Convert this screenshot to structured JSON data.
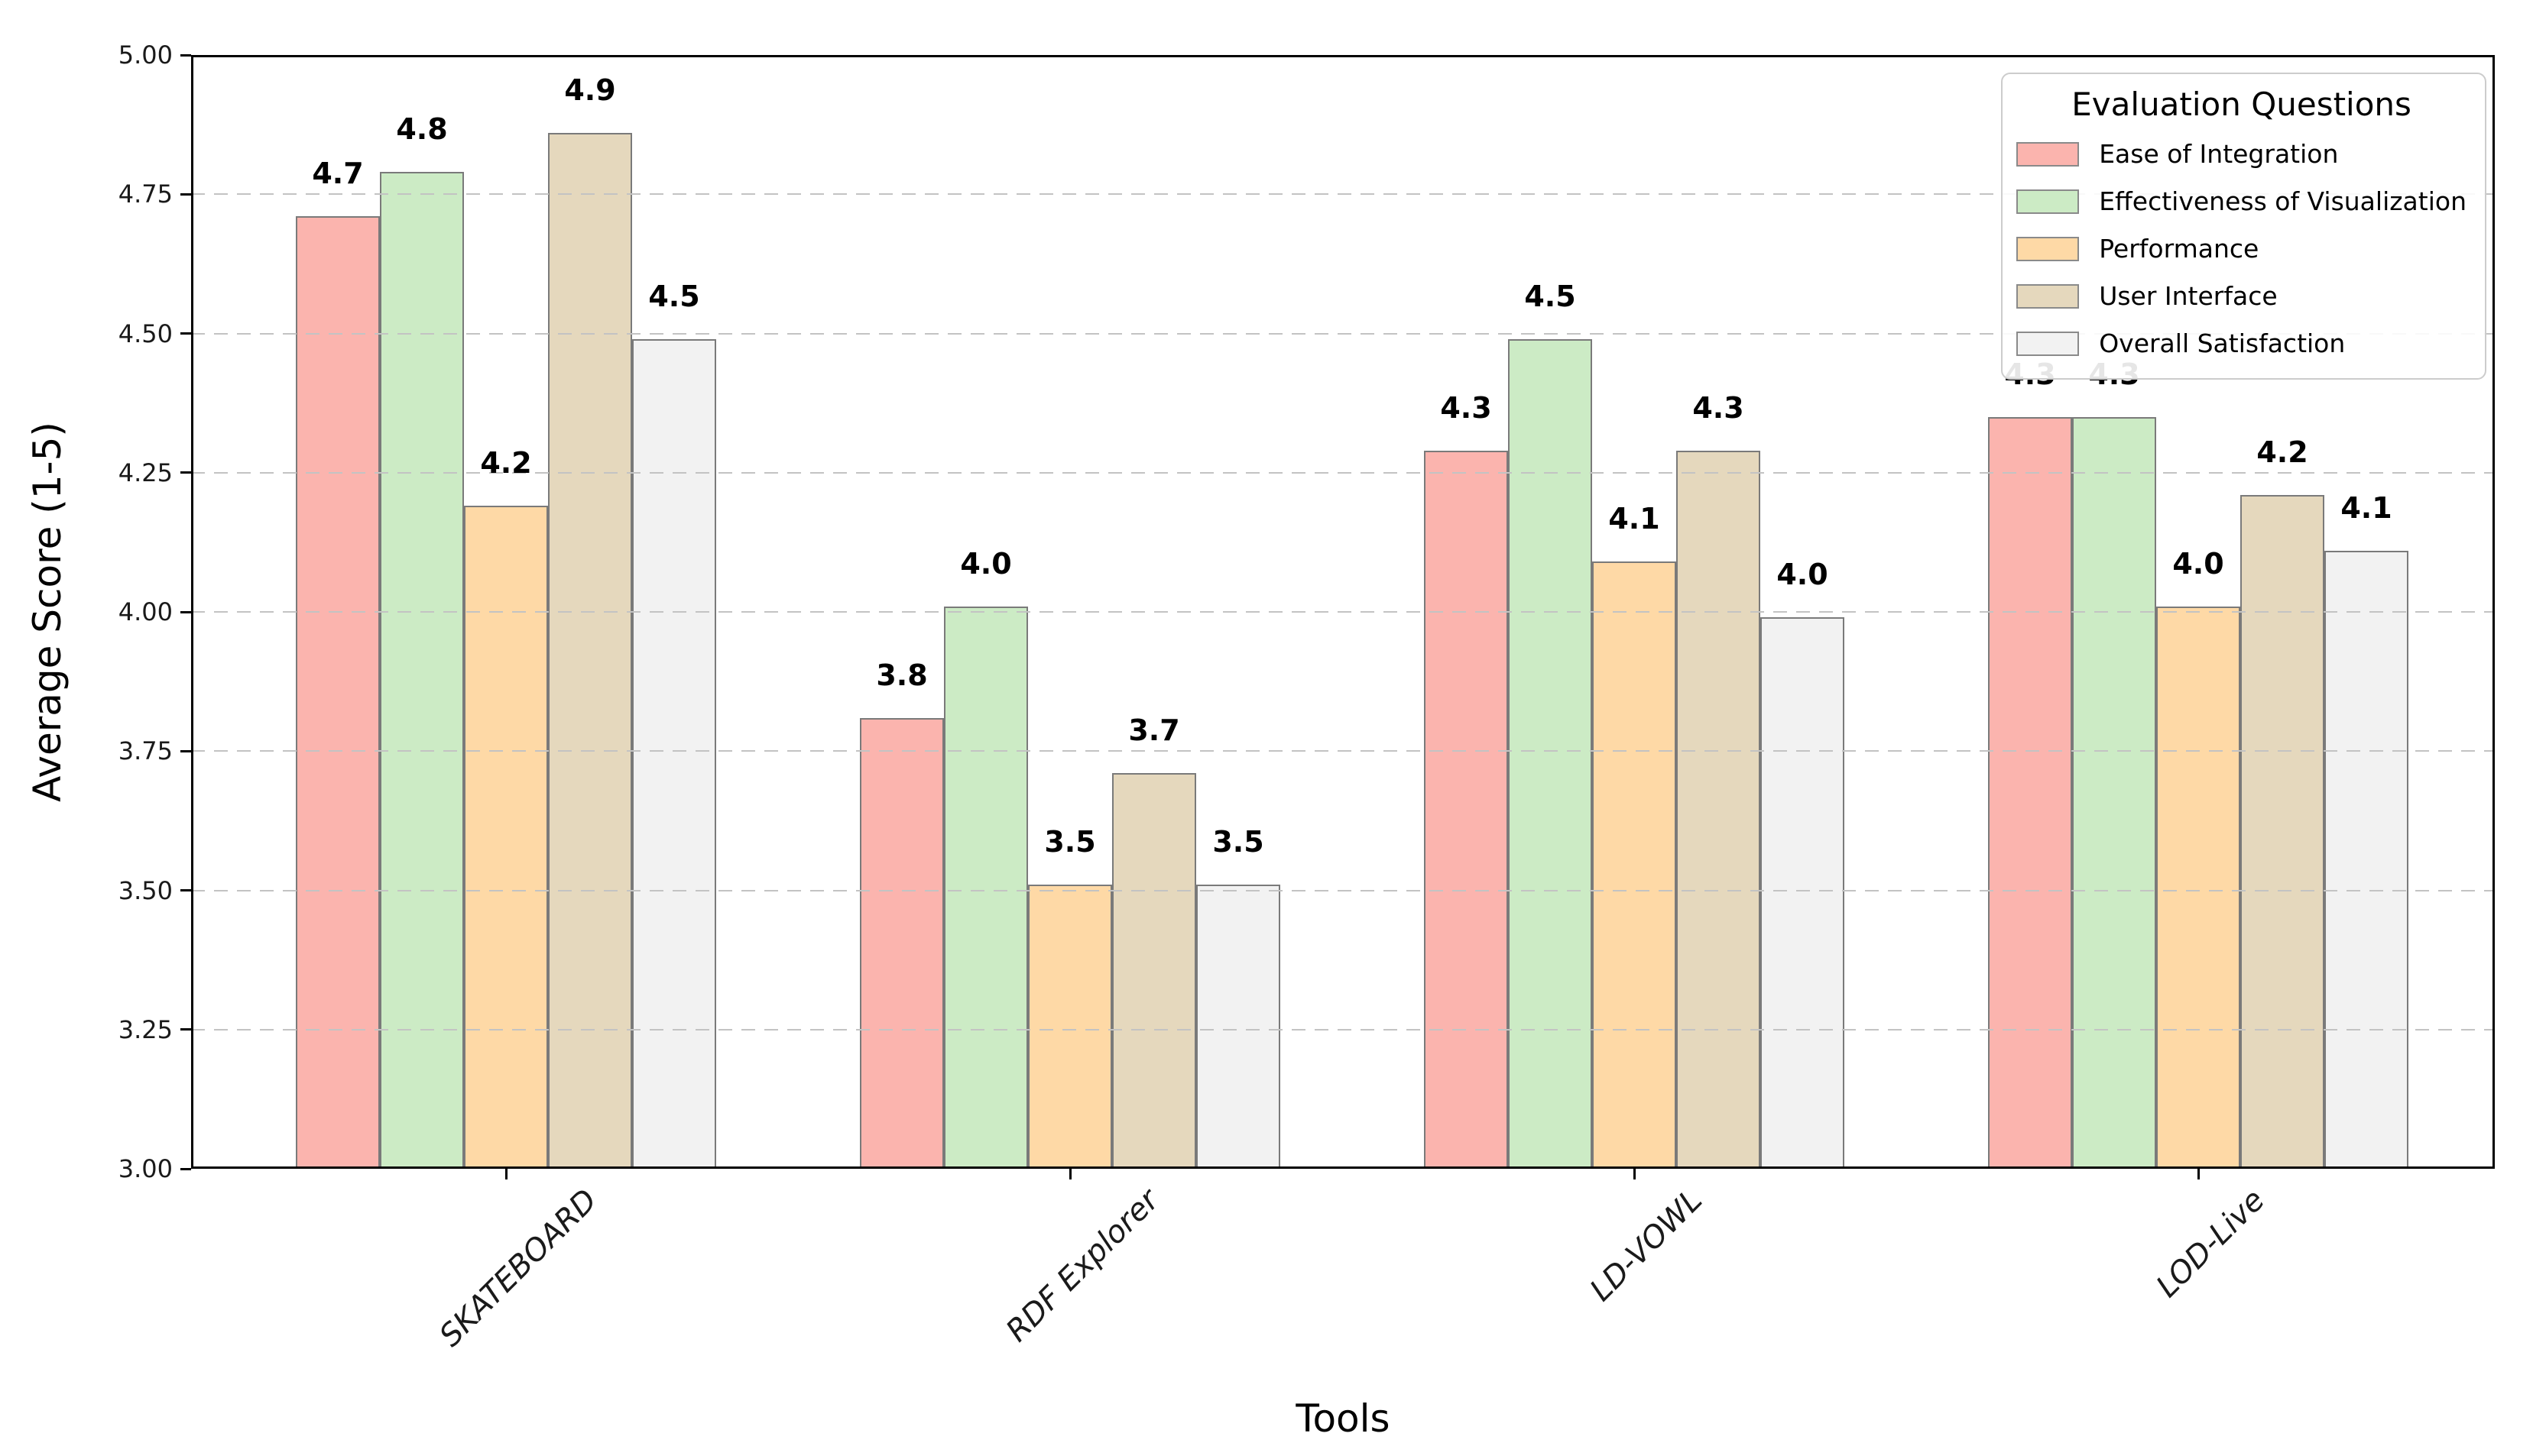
{
  "legend": {
    "title": "Evaluation Questions",
    "position": "upper right",
    "items": [
      {
        "label": "Ease of Integration",
        "color": "#fbb4ae"
      },
      {
        "label": "Effectiveness of Visualization",
        "color": "#ccebc5"
      },
      {
        "label": "Performance",
        "color": "#fed9a6"
      },
      {
        "label": "User Interface",
        "color": "#e5d8bd"
      },
      {
        "label": "Overall Satisfaction",
        "color": "#f2f2f2"
      }
    ]
  },
  "chart_data": {
    "type": "bar",
    "title": "",
    "xlabel": "Tools",
    "ylabel": "Average Score (1-5)",
    "categories": [
      "SKATEBOARD",
      "RDF Explorer",
      "LD-VOWL",
      "LOD-Live"
    ],
    "series": [
      {
        "name": "Ease of Integration",
        "color": "#fbb4ae",
        "values": [
          4.7,
          3.8,
          4.3,
          4.3
        ],
        "bar_tops": [
          4.71,
          3.81,
          4.29,
          4.35
        ]
      },
      {
        "name": "Effectiveness of Visualization",
        "color": "#ccebc5",
        "values": [
          4.8,
          4.0,
          4.5,
          4.3
        ],
        "bar_tops": [
          4.79,
          4.01,
          4.49,
          4.35
        ]
      },
      {
        "name": "Performance",
        "color": "#fed9a6",
        "values": [
          4.2,
          3.5,
          4.1,
          4.0
        ],
        "bar_tops": [
          4.19,
          3.51,
          4.09,
          4.01
        ]
      },
      {
        "name": "User Interface",
        "color": "#e5d8bd",
        "values": [
          4.9,
          3.7,
          4.3,
          4.2
        ],
        "bar_tops": [
          4.86,
          3.71,
          4.29,
          4.21
        ]
      },
      {
        "name": "Overall Satisfaction",
        "color": "#f2f2f2",
        "values": [
          4.5,
          3.5,
          4.0,
          4.1
        ],
        "bar_tops": [
          4.49,
          3.51,
          3.99,
          4.11
        ]
      }
    ],
    "ylim": [
      3.0,
      5.0
    ],
    "ytick_labels": [
      "3.00",
      "3.25",
      "3.50",
      "3.75",
      "4.00",
      "4.25",
      "4.50",
      "4.75",
      "5.00"
    ],
    "grid": "horizontal dashed",
    "legend_position": "upper right",
    "value_labels": true,
    "style": {
      "bar_edge_color": "#7a7a7a",
      "grid_color": "#c3c3c3",
      "spine_color": "#000000",
      "tick_label_color": "#1a1a1a",
      "background": "#ffffff"
    }
  }
}
